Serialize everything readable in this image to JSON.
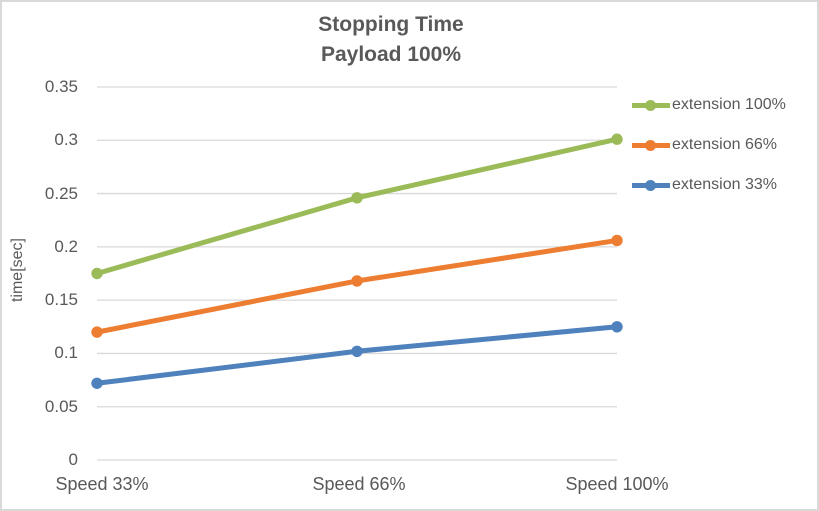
{
  "chart_data": {
    "type": "line",
    "title": "Stopping Time",
    "subtitle": "Payload 100%",
    "ylabel": "time[sec]",
    "xlabel": "",
    "categories": [
      "Speed 33%",
      "Speed 66%",
      "Speed 100%"
    ],
    "series": [
      {
        "name": "extension 100%",
        "color": "#9BBB59",
        "values": [
          0.175,
          0.246,
          0.301
        ]
      },
      {
        "name": "extension 66%",
        "color": "#ED7D31",
        "values": [
          0.12,
          0.168,
          0.206
        ]
      },
      {
        "name": "extension 33%",
        "color": "#4F81BD",
        "values": [
          0.072,
          0.102,
          0.125
        ]
      }
    ],
    "ylim": [
      0,
      0.35
    ],
    "ytick_step": 0.05,
    "yticks": [
      "0.35",
      "0.3",
      "0.25",
      "0.2",
      "0.15",
      "0.1",
      "0.05",
      "0"
    ],
    "grid": true,
    "legend_position": "right",
    "text_color": "#595959",
    "grid_color": "#D9D9D9",
    "background_color": "#FFFFFF"
  }
}
